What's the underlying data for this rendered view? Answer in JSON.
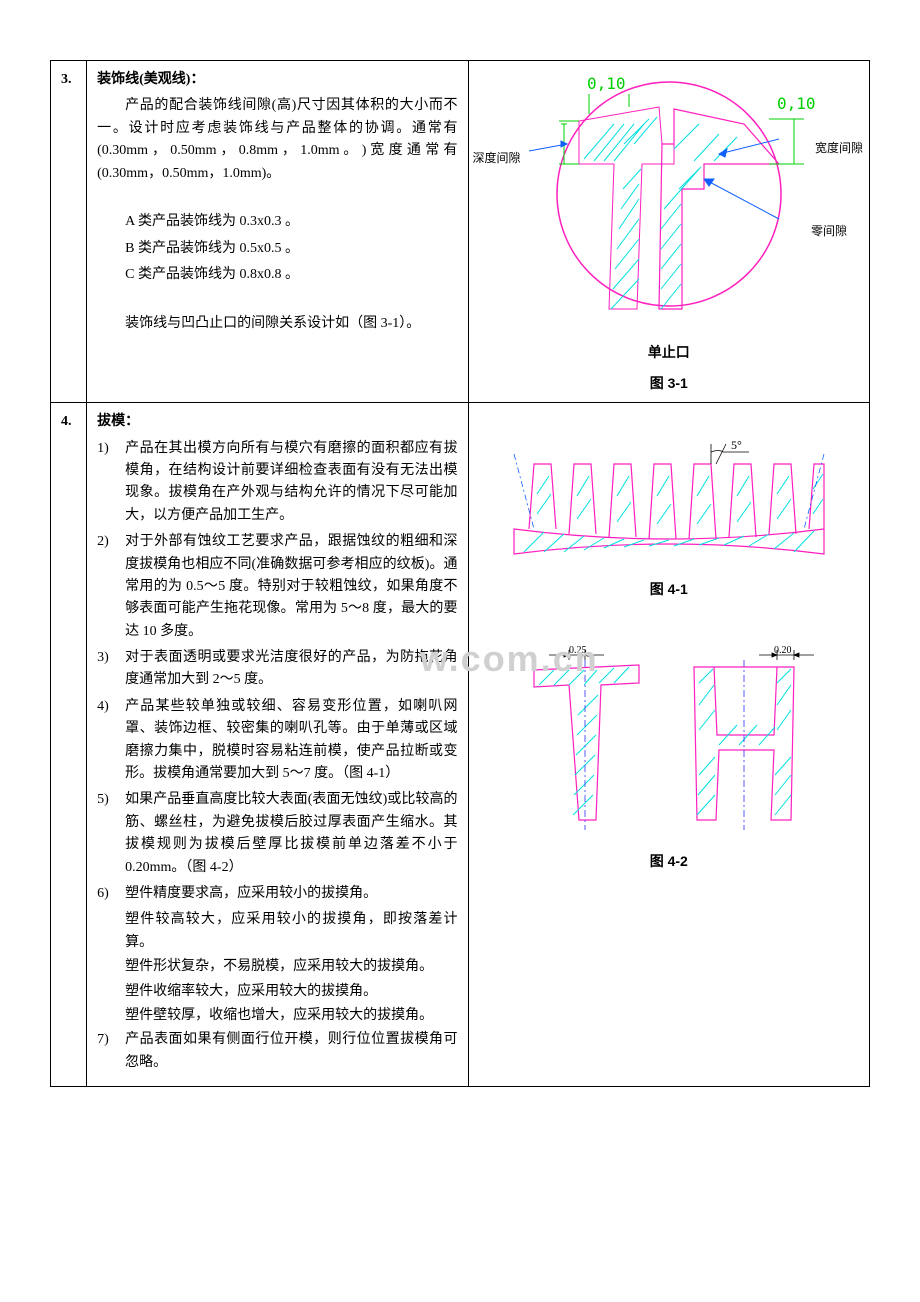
{
  "watermark": "w.com.cn",
  "sec3": {
    "num": "3.",
    "title": "装饰线(美观线)：",
    "p1": "产品的配合装饰线间隙(高)尺寸因其体积的大小而不一。设计时应考虑装饰线与产品整体的协调。通常有 (0.30mm ， 0.50mm ， 0.8mm ， 1.0mm 。 ) 宽 度 通 常 有 (0.30mm，0.50mm，1.0mm)。",
    "lines": [
      "A 类产品装饰线为 0.3x0.3 。",
      "B 类产品装饰线为 0.5x0.5 。",
      "C 类产品装饰线为 0.8x0.8 。"
    ],
    "p2": "装饰线与凹凸止口的间隙关系设计如（图 3-1）。",
    "fig": {
      "dim_top": "0,10",
      "dim_right": "0,10",
      "label_depth": "深度间隙",
      "label_width": "宽度间隙",
      "label_zero": "零间隙",
      "label_bottom": "单止口",
      "caption": "图 3-1",
      "colors": {
        "circle": "#ff1fbf",
        "hatch": "#00e0e0",
        "measure": "#00d000",
        "outline": "#ff1fbf",
        "annot": "#1060ff"
      },
      "size": 300
    }
  },
  "sec4": {
    "num": "4.",
    "title": "拔模：",
    "items": [
      {
        "idx": "1)",
        "txt": "产品在其出模方向所有与模穴有磨擦的面积都应有拔模角，在结构设计前要详细检查表面有没有无法出模现象。拔模角在产外观与结构允许的情况下尽可能加大，以方便产品加工生产。"
      },
      {
        "idx": "2)",
        "txt": "对于外部有蚀纹工艺要求产品，跟据蚀纹的粗细和深度拔模角也相应不同(准确数据可参考相应的纹板)。通常用的为 0.5～5 度。特别对于较粗蚀纹，如果角度不够表面可能产生拖花现像。常用为 5～8 度，最大的要达 10 多度。"
      },
      {
        "idx": "3)",
        "txt": "对于表面透明或要求光洁度很好的产品，为防拖花角度通常加大到 2～5 度。"
      },
      {
        "idx": "4)",
        "txt": "产品某些较单独或较细、容易变形位置，如喇叭网罩、装饰边框、较密集的喇叭孔等。由于单薄或区域磨擦力集中，脱模时容易粘连前模，使产品拉断或变形。拔模角通常要加大到 5～7 度。（图 4-1）"
      },
      {
        "idx": "5)",
        "txt": "如果产品垂直高度比较大表面(表面无蚀纹)或比较高的筋、螺丝柱，为避免拔模后胶过厚表面产生缩水。其拔模规则为拔模后壁厚比拔模前单边落差不小于 0.20mm。（图 4-2）"
      },
      {
        "idx": "6)",
        "txt": "塑件精度要求高，应采用较小的拔摸角。",
        "subs": [
          "塑件较高较大，应采用较小的拔摸角，即按落差计算。",
          "塑件形状复杂，不易脱模，应采用较大的拔摸角。",
          "塑件收缩率较大，应采用较大的拔摸角。",
          "塑件壁较厚，收缩也增大，应采用较大的拔摸角。"
        ]
      },
      {
        "idx": "7)",
        "txt": "产品表面如果有侧面行位开模，则行位位置拔模角可忽略。"
      }
    ],
    "fig41": {
      "angle": "5°",
      "caption": "图 4-1",
      "colors": {
        "hatch": "#00e0e0",
        "outline": "#ff1fbf",
        "center": "#1060ff",
        "annot": "#000"
      }
    },
    "fig42": {
      "dim_left": "0.25",
      "dim_right": "0.20",
      "caption": "图 4-2",
      "colors": {
        "hatch": "#00e0e0",
        "outline": "#ff1fbf",
        "center": "#3030ff",
        "measure": "#00d000"
      }
    }
  }
}
